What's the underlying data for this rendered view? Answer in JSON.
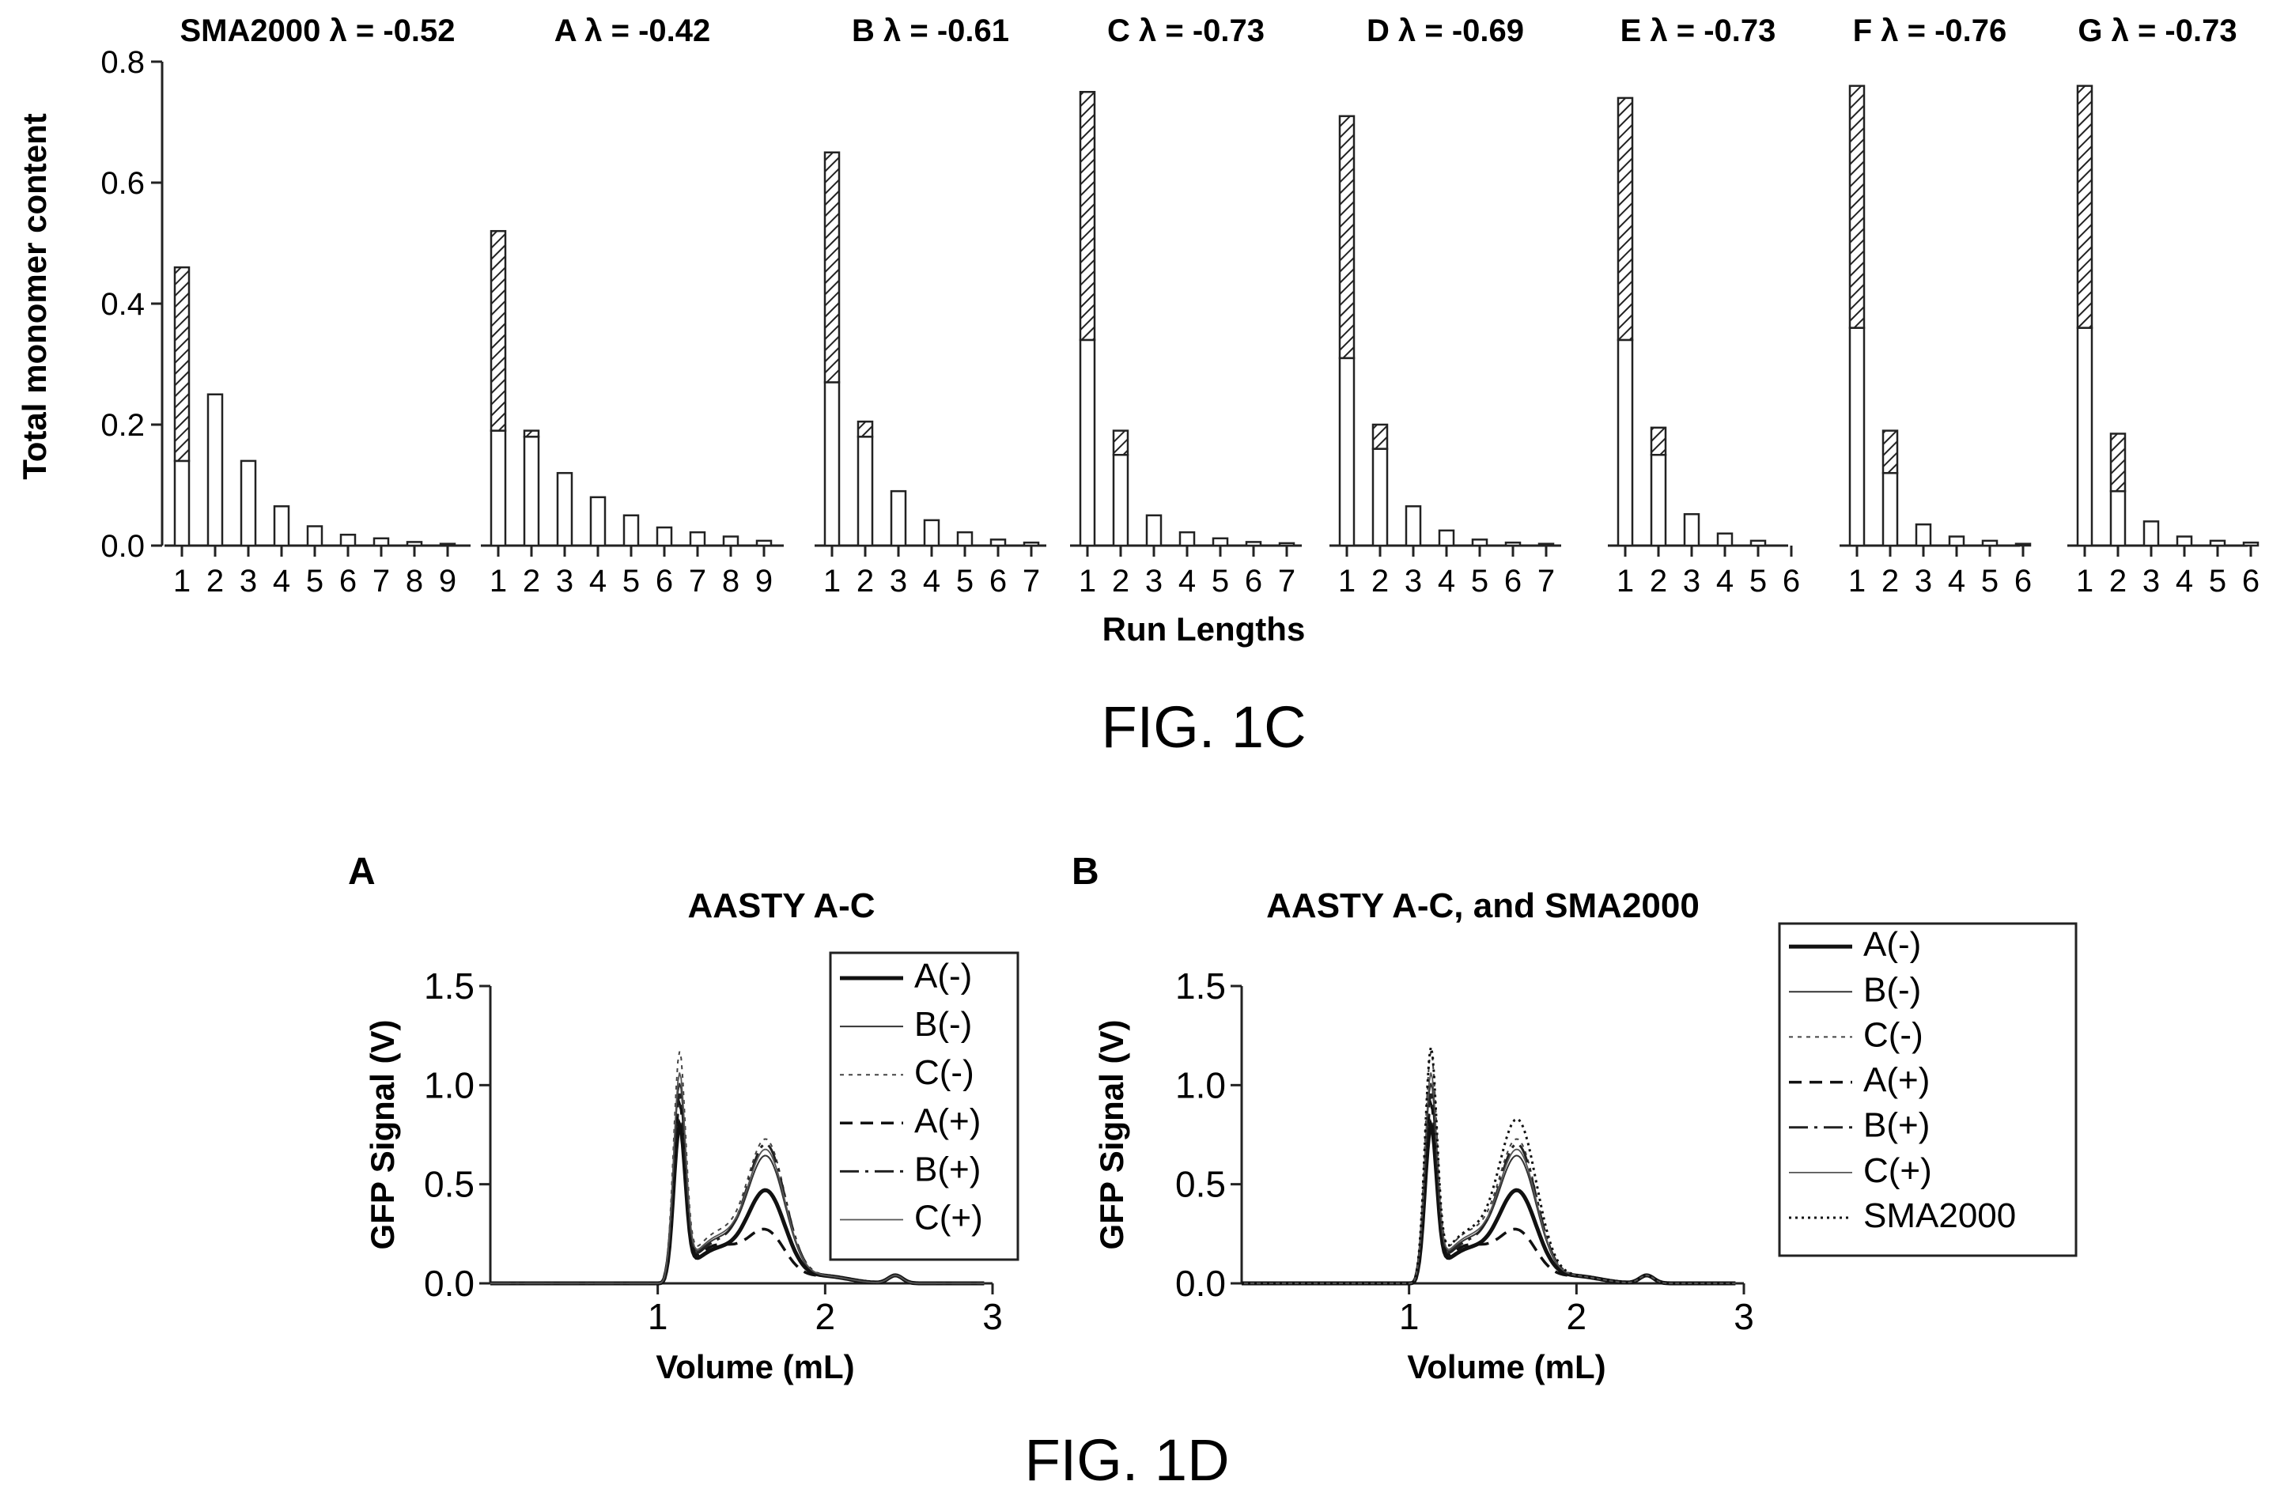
{
  "fig_1c": {
    "caption": "FIG. 1C",
    "ylabel": "Total monomer content",
    "xlabel": "Run Lengths",
    "chart_data": {
      "type": "bar",
      "ylim": [
        0,
        0.8
      ],
      "yticks": [
        "0.0",
        "0.2",
        "0.4",
        "0.6",
        "0.8"
      ],
      "stacked": true,
      "panels": [
        {
          "title": "SMA2000 λ = -0.52",
          "categories": [
            "1",
            "2",
            "3",
            "4",
            "5",
            "6",
            "7",
            "8",
            "9"
          ],
          "series": [
            {
              "values": [
                0.14,
                0.25,
                0.14,
                0.065,
                0.032,
                0.018,
                0.012,
                0.006,
                0.003
              ]
            },
            {
              "values": [
                0.32,
                0,
                0,
                0,
                0,
                0,
                0,
                0,
                0
              ]
            }
          ]
        },
        {
          "title": "A λ = -0.42",
          "categories": [
            "1",
            "2",
            "3",
            "4",
            "5",
            "6",
            "7",
            "8",
            "9"
          ],
          "series": [
            {
              "values": [
                0.19,
                0.18,
                0.12,
                0.08,
                0.05,
                0.03,
                0.022,
                0.015,
                0.008
              ]
            },
            {
              "values": [
                0.33,
                0.01,
                0,
                0,
                0,
                0,
                0,
                0,
                0
              ]
            }
          ]
        },
        {
          "title": "B λ = -0.61",
          "categories": [
            "1",
            "2",
            "3",
            "4",
            "5",
            "6",
            "7"
          ],
          "series": [
            {
              "values": [
                0.27,
                0.18,
                0.09,
                0.042,
                0.022,
                0.01,
                0.005
              ]
            },
            {
              "values": [
                0.38,
                0.025,
                0,
                0,
                0,
                0,
                0
              ]
            }
          ]
        },
        {
          "title": "C λ = -0.73",
          "categories": [
            "1",
            "2",
            "3",
            "4",
            "5",
            "6",
            "7"
          ],
          "series": [
            {
              "values": [
                0.34,
                0.15,
                0.05,
                0.022,
                0.012,
                0.006,
                0.004
              ]
            },
            {
              "values": [
                0.41,
                0.04,
                0,
                0,
                0,
                0,
                0
              ]
            }
          ]
        },
        {
          "title": "D λ = -0.69",
          "categories": [
            "1",
            "2",
            "3",
            "4",
            "5",
            "6",
            "7"
          ],
          "series": [
            {
              "values": [
                0.31,
                0.16,
                0.065,
                0.025,
                0.01,
                0.005,
                0.003
              ]
            },
            {
              "values": [
                0.4,
                0.04,
                0,
                0,
                0,
                0,
                0
              ]
            }
          ]
        },
        {
          "title": "E λ = -0.73",
          "categories": [
            "1",
            "2",
            "3",
            "4",
            "5",
            "6"
          ],
          "series": [
            {
              "values": [
                0.34,
                0.15,
                0.052,
                0.02,
                0.008,
                0
              ]
            },
            {
              "values": [
                0.4,
                0.045,
                0,
                0,
                0,
                0
              ]
            }
          ]
        },
        {
          "title": "F λ = -0.76",
          "categories": [
            "1",
            "2",
            "3",
            "4",
            "5",
            "6"
          ],
          "series": [
            {
              "values": [
                0.36,
                0.12,
                0.035,
                0.015,
                0.008,
                0.003
              ]
            },
            {
              "values": [
                0.4,
                0.07,
                0,
                0,
                0,
                0
              ]
            }
          ]
        },
        {
          "title": "G λ = -0.73",
          "categories": [
            "1",
            "2",
            "3",
            "4",
            "5",
            "6"
          ],
          "series": [
            {
              "values": [
                0.36,
                0.09,
                0.04,
                0.015,
                0.008,
                0.005
              ]
            },
            {
              "values": [
                0.4,
                0.095,
                0,
                0,
                0,
                0
              ]
            }
          ]
        }
      ]
    }
  },
  "fig_1d": {
    "caption": "FIG. 1D",
    "chart_data": [
      {
        "type": "line",
        "panel_label": "A",
        "title": "AASTY A-C",
        "xlabel": "Volume (mL)",
        "ylabel": "GFP Signal (V)",
        "xlim": [
          0,
          3
        ],
        "ylim": [
          0,
          1.5
        ],
        "xticks": [
          "1",
          "2",
          "3"
        ],
        "yticks": [
          "0.0",
          "0.5",
          "1.0",
          "1.5"
        ],
        "legend_position": "top-right",
        "series": [
          {
            "name": "A(-)",
            "style": "solid-thick",
            "points": [
              [
                1.1,
                0.75
              ],
              [
                1.4,
                0.2
              ],
              [
                1.65,
                0.45
              ]
            ]
          },
          {
            "name": "B(-)",
            "style": "solid-thin",
            "points": [
              [
                1.13,
                0.95
              ],
              [
                1.45,
                0.3
              ],
              [
                1.67,
                0.6
              ]
            ]
          },
          {
            "name": "C(-)",
            "style": "dotted",
            "points": [
              [
                1.14,
                1.1
              ],
              [
                1.45,
                0.25
              ],
              [
                1.7,
                0.7
              ]
            ]
          },
          {
            "name": "A(+)",
            "style": "dashed",
            "points": [
              [
                1.1,
                0.85
              ],
              [
                1.48,
                0.27
              ],
              [
                1.6,
                0.15
              ]
            ]
          },
          {
            "name": "B(+)",
            "style": "dash-dot",
            "points": [
              [
                1.12,
                0.9
              ],
              [
                1.5,
                0.3
              ],
              [
                1.65,
                0.7
              ]
            ]
          },
          {
            "name": "C(+)",
            "style": "solid-fine",
            "points": [
              [
                1.15,
                1.0
              ],
              [
                1.5,
                0.28
              ],
              [
                1.68,
                0.66
              ]
            ]
          }
        ]
      },
      {
        "type": "line",
        "panel_label": "B",
        "title": "AASTY A-C, and SMA2000",
        "xlabel": "Volume (mL)",
        "ylabel": "GFP Signal (V)",
        "xlim": [
          0,
          3
        ],
        "ylim": [
          0,
          1.5
        ],
        "xticks": [
          "1",
          "2",
          "3"
        ],
        "yticks": [
          "0.0",
          "0.5",
          "1.0",
          "1.5"
        ],
        "legend_position": "outside-right",
        "series": [
          {
            "name": "A(-)",
            "style": "solid-thick"
          },
          {
            "name": "B(-)",
            "style": "solid-thin"
          },
          {
            "name": "C(-)",
            "style": "dashed-fine"
          },
          {
            "name": "A(+)",
            "style": "dashed"
          },
          {
            "name": "B(+)",
            "style": "dash-dot"
          },
          {
            "name": "C(+)",
            "style": "solid-fine"
          },
          {
            "name": "SMA2000",
            "style": "dotted"
          }
        ]
      }
    ]
  }
}
